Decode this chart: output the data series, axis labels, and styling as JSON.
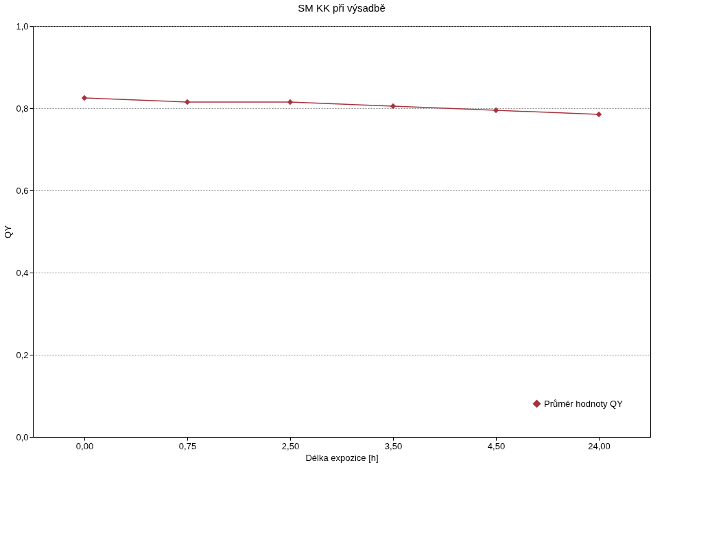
{
  "chart_data": {
    "type": "line",
    "title": "SM KK při výsadbě",
    "xlabel": "Délka expozice [h]",
    "ylabel": "QY",
    "categories": [
      "0,00",
      "0,75",
      "2,50",
      "3,50",
      "4,50",
      "24,00"
    ],
    "series": [
      {
        "name": "Průměr hodnoty QY",
        "color": "#a8323e",
        "values": [
          0.825,
          0.815,
          0.815,
          0.805,
          0.795,
          0.785
        ]
      }
    ],
    "ylim": [
      0,
      1
    ],
    "yticks": [
      {
        "value": 0,
        "label": "0,0"
      },
      {
        "value": 0.2,
        "label": "0,2"
      },
      {
        "value": 0.4,
        "label": "0,4"
      },
      {
        "value": 0.6,
        "label": "0,6"
      },
      {
        "value": 0.8,
        "label": "0,8"
      },
      {
        "value": 1,
        "label": "1,0"
      }
    ],
    "grid": "y",
    "legend": "bottom right",
    "marker": "diamond",
    "line_style": "solid"
  }
}
